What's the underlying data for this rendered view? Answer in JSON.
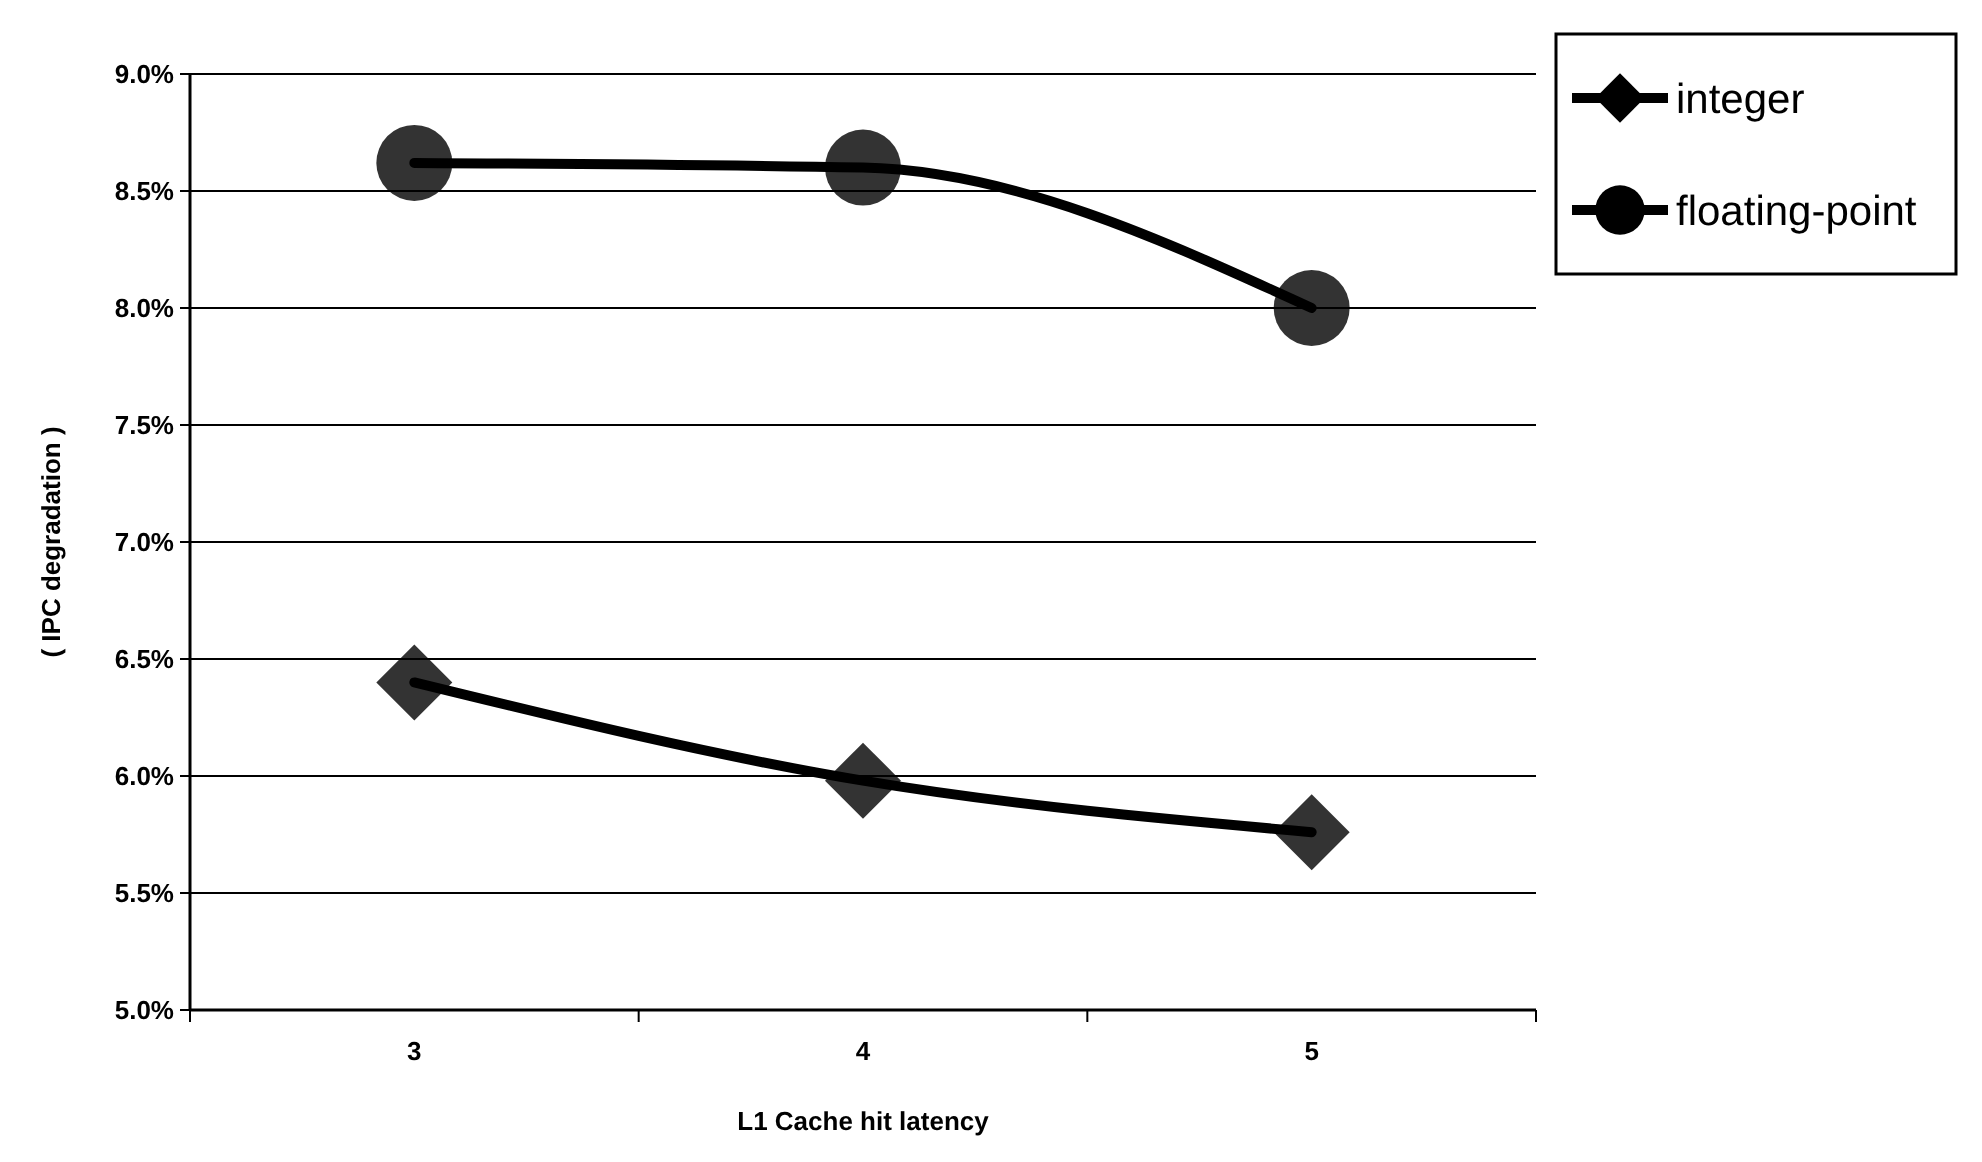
{
  "chart_data": {
    "type": "line",
    "xlabel": "L1 Cache hit latency",
    "ylabel": "( IPC degradation )",
    "categories": [
      "3",
      "4",
      "5"
    ],
    "series": [
      {
        "name": "integer",
        "color": "#000000",
        "values": [
          6.4,
          5.98,
          5.76
        ],
        "marker": "diamond"
      },
      {
        "name": "floating-point",
        "color": "#000000",
        "values": [
          8.62,
          8.6,
          8.0
        ],
        "marker": "circle"
      }
    ],
    "ylim": [
      5.0,
      9.0
    ],
    "yticks": [
      {
        "value": 5.0,
        "label": "5.0%"
      },
      {
        "value": 5.5,
        "label": "5.5%"
      },
      {
        "value": 6.0,
        "label": "6.0%"
      },
      {
        "value": 6.5,
        "label": "6.5%"
      },
      {
        "value": 7.0,
        "label": "7.0%"
      },
      {
        "value": 7.5,
        "label": "7.5%"
      },
      {
        "value": 8.0,
        "label": "8.0%"
      },
      {
        "value": 8.5,
        "label": "8.5%"
      },
      {
        "value": 9.0,
        "label": "9.0%"
      }
    ],
    "grid": "y",
    "legend": "right",
    "line_style": "solid"
  }
}
